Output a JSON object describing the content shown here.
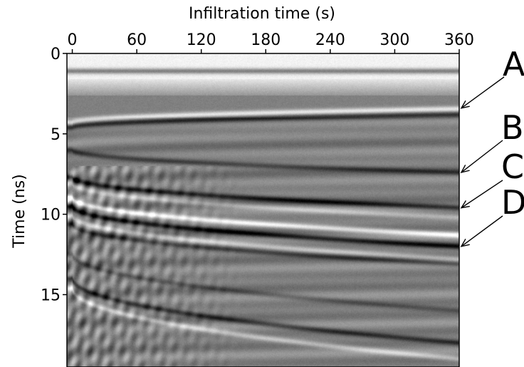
{
  "chart_data": {
    "type": "heatmap",
    "colormap": "grayscale",
    "xlabel": "Infiltration time (s)",
    "ylabel": "Time (ns)",
    "xlim": [
      -5,
      360
    ],
    "ylim": [
      0,
      19.5
    ],
    "x_ticks": [
      0,
      60,
      120,
      180,
      240,
      300,
      360
    ],
    "y_ticks": [
      0,
      5,
      10,
      15
    ],
    "x_axis_position": "top",
    "y_axis_inverted": true,
    "annotations": [
      {
        "label": "A",
        "arrow_to": {
          "x": 360,
          "y": 3.4
        }
      },
      {
        "label": "B",
        "arrow_to": {
          "x": 360,
          "y": 7.4
        }
      },
      {
        "label": "C",
        "arrow_to": {
          "x": 360,
          "y": 9.6
        }
      },
      {
        "label": "D",
        "arrow_to": {
          "x": 360,
          "y": 12.0
        }
      }
    ],
    "horizons": [
      {
        "y_start": 1.1,
        "y_end": 1.1,
        "polarity": "black",
        "strength": 1.0
      },
      {
        "y_start": 4.3,
        "y_end": 3.45,
        "polarity": "white",
        "strength": 0.9
      },
      {
        "y_start": 4.6,
        "y_end": 3.8,
        "polarity": "black",
        "strength": 0.7
      },
      {
        "y_start": 6.0,
        "y_end": 7.4,
        "polarity": "black",
        "strength": 0.6
      },
      {
        "y_start": 7.7,
        "y_end": 9.6,
        "polarity": "black",
        "strength": 0.9
      },
      {
        "y_start": 8.1,
        "y_end": 10.2,
        "polarity": "white",
        "strength": 0.5
      },
      {
        "y_start": 9.0,
        "y_end": 11.3,
        "polarity": "white",
        "strength": 1.0
      },
      {
        "y_start": 9.5,
        "y_end": 12.0,
        "polarity": "black",
        "strength": 1.0
      },
      {
        "y_start": 10.1,
        "y_end": 12.8,
        "polarity": "white",
        "strength": 0.6
      },
      {
        "y_start": 10.6,
        "y_end": 13.1,
        "polarity": "black",
        "strength": 0.6
      },
      {
        "y_start": 12.5,
        "y_end": 16.0,
        "polarity": "black",
        "strength": 0.4
      },
      {
        "y_start": 14.0,
        "y_end": 18.0,
        "polarity": "black",
        "strength": 0.7
      },
      {
        "y_start": 14.6,
        "y_end": 19.0,
        "polarity": "white",
        "strength": 0.6
      }
    ]
  }
}
